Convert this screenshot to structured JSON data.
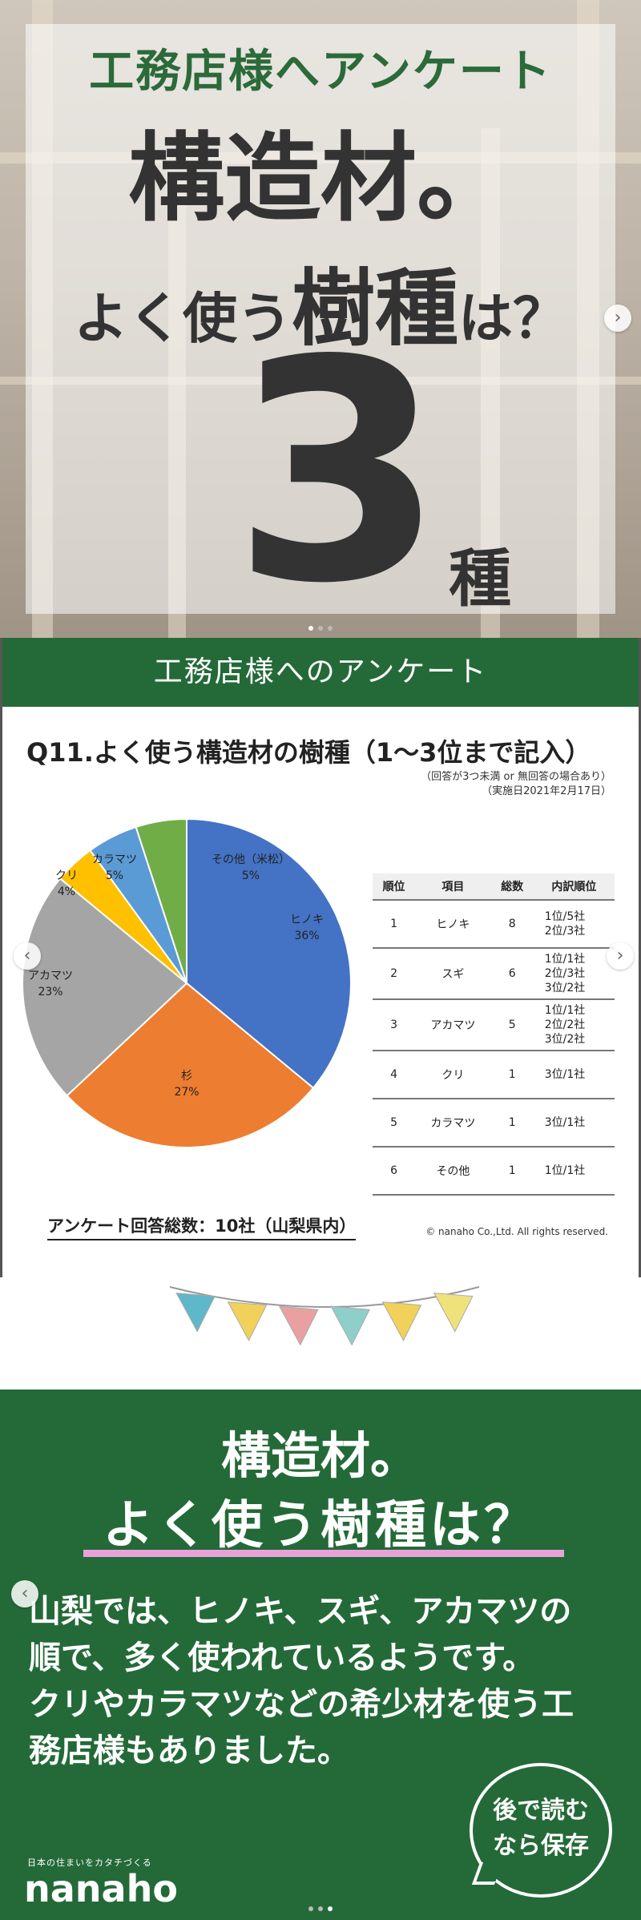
{
  "slide1": {
    "kicker": "工務店様へアンケート",
    "headline_line1": "構造材。",
    "headline_line2_a": "よく使う",
    "headline_line2_b": "樹種",
    "headline_line2_c": "は？",
    "big_number": "3",
    "unit": "種",
    "next_arrow": "›"
  },
  "slide2": {
    "band_title": "工務店様へのアンケート",
    "question": "Q11.よく使う構造材の樹種（1～3位まで記入）",
    "note_line1": "（回答が3つ未満 or 無回答の場合あり）",
    "note_line2": "（実施日2021年2月17日）",
    "prev_arrow": "‹",
    "next_arrow": "›",
    "total_label": "アンケート回答総数：10社（山梨県内）",
    "copyright": "© nanaho Co.,Ltd. All rights reserved.",
    "table": {
      "headers": [
        "順位",
        "項目",
        "総数",
        "内訳順位"
      ],
      "rows": [
        {
          "rank": "1",
          "item": "ヒノキ",
          "total": "8",
          "breakdown": [
            "1位/5社",
            "2位/3社"
          ]
        },
        {
          "rank": "2",
          "item": "スギ",
          "total": "6",
          "breakdown": [
            "1位/1社",
            "2位/3社",
            "3位/2社"
          ]
        },
        {
          "rank": "3",
          "item": "アカマツ",
          "total": "5",
          "breakdown": [
            "1位/1社",
            "2位/2社",
            "3位/2社"
          ]
        },
        {
          "rank": "4",
          "item": "クリ",
          "total": "1",
          "breakdown": [
            "3位/1社"
          ]
        },
        {
          "rank": "5",
          "item": "カラマツ",
          "total": "1",
          "breakdown": [
            "3位/1社"
          ]
        },
        {
          "rank": "6",
          "item": "その他",
          "total": "1",
          "breakdown": [
            "1位/1社"
          ]
        }
      ]
    }
  },
  "chart_data": {
    "type": "pie",
    "title": "Q11.よく使う構造材の樹種（1～3位まで記入）",
    "slices": [
      {
        "label": "ヒノキ",
        "value": 36,
        "pct_label": "36%",
        "color": "#4472c4"
      },
      {
        "label": "杉",
        "value": 27,
        "pct_label": "27%",
        "color": "#ed7d31"
      },
      {
        "label": "アカマツ",
        "value": 23,
        "pct_label": "23%",
        "color": "#a5a5a5"
      },
      {
        "label": "クリ",
        "value": 4,
        "pct_label": "4%",
        "color": "#ffc000"
      },
      {
        "label": "カラマツ",
        "value": 5,
        "pct_label": "5%",
        "color": "#5b9bd5"
      },
      {
        "label": "その他（米松）",
        "value": 5,
        "pct_label": "5%",
        "color": "#70ad47"
      }
    ],
    "legend": "none"
  },
  "slide3": {
    "title_line1": "構造材。",
    "title_line2": "よく使う樹種は？",
    "body_lines": [
      "山梨では、ヒノキ、スギ、アカマツの",
      "順で、多く使われているようです。",
      "クリやカラマツなどの希少材を使う工",
      "務店様もありました。"
    ],
    "save_line1": "後で読む",
    "save_line2": "なら保存",
    "tagline": "日本の住まいをカタチづくる",
    "logo": "nanaho",
    "prev_arrow": "‹",
    "bunting_colors": [
      "#5fb8c9",
      "#f2d15a",
      "#e8a0a0",
      "#8fcfc9",
      "#f2d15a",
      "#f0e27a"
    ]
  },
  "colors": {
    "brand_green": "#246a38",
    "accent_pink": "#e8a2da"
  }
}
